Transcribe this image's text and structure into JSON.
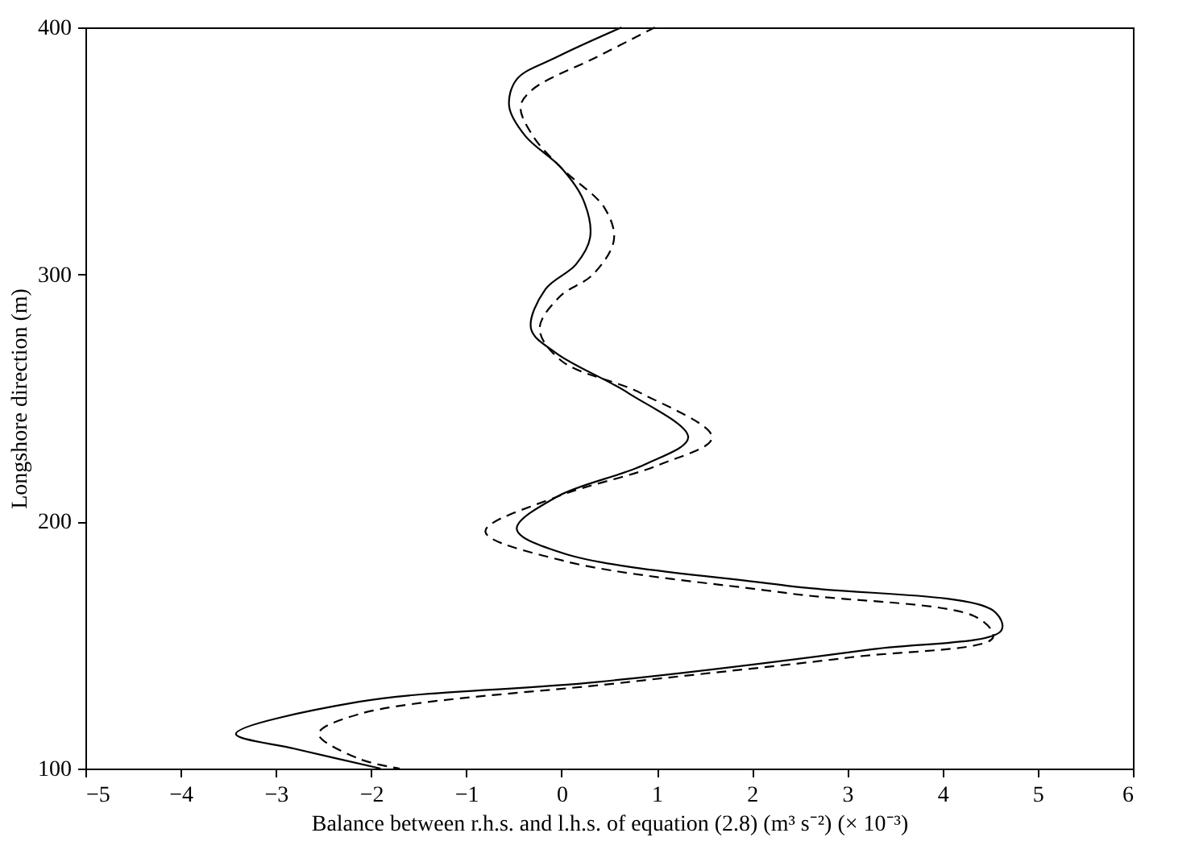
{
  "chart_data": {
    "type": "line",
    "xlabel": "Balance between r.h.s. and l.h.s. of equation (2.8) (m³ s⁻²)  (× 10⁻³)",
    "ylabel": "Longshore direction (m)",
    "xlim": [
      -5,
      6
    ],
    "xticks": [
      -5,
      -4,
      -3,
      -2,
      -1,
      0,
      1,
      2,
      3,
      4,
      5,
      6
    ],
    "ylim": [
      100,
      400
    ],
    "yticks": [
      100,
      200,
      300,
      400
    ],
    "grid": false,
    "marker": "none",
    "series": [
      {
        "color": "#000000",
        "line_style": "solid",
        "x": [
          0.63,
          -0.05,
          -0.47,
          -0.55,
          -0.38,
          0,
          0.23,
          0.3,
          0.15,
          -0.17,
          -0.32,
          -0.05,
          0.7,
          1.33,
          0.87,
          -0.05,
          -0.47,
          0.03,
          2.37,
          4.53,
          4.62,
          3.2,
          0.37,
          -2.13,
          -3.42,
          -2.8,
          -1.9
        ],
        "values": [
          400,
          388,
          379,
          368,
          356,
          343,
          330,
          315,
          304,
          294,
          278,
          268,
          252,
          234,
          223,
          210,
          197,
          187,
          174,
          164,
          156,
          148,
          135,
          127,
          114,
          108,
          100
        ]
      },
      {
        "color": "#000000",
        "line_style": "dashed",
        "x": [
          0.98,
          0.37,
          -0.3,
          -0.43,
          -0.3,
          0,
          0.45,
          0.55,
          0.33,
          -0.02,
          -0.23,
          0,
          0.83,
          1.58,
          1.03,
          -0.05,
          -0.8,
          0.03,
          2.37,
          4.37,
          4.53,
          3.03,
          0.7,
          -2.13,
          -2.55,
          -2.13,
          -1.7
        ],
        "values": [
          400,
          388,
          375,
          368,
          356,
          343,
          327,
          314,
          300,
          291,
          278,
          265,
          252,
          234,
          223,
          210,
          196,
          184,
          171,
          161,
          153,
          145,
          135,
          122,
          114,
          104,
          100
        ]
      }
    ]
  }
}
